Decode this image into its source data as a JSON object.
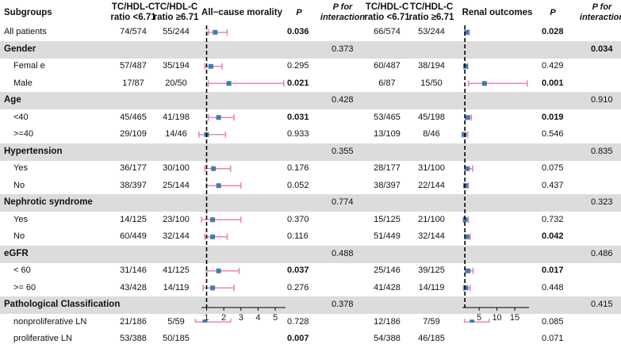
{
  "headers": {
    "subgroups": "Subgroups",
    "ratio_low_1": "TC/HDL-C",
    "ratio_low_2": "ratio <6.71",
    "ratio_high_1": "TC/HDL-C",
    "ratio_high_2": "ratio ≥6.71",
    "amr_title": "All−cause morality",
    "p": "P",
    "p_int_1": "P for",
    "p_int_2": "interaction",
    "renal_title": "Renal outcomes"
  },
  "rows": [
    {
      "label": "All patients",
      "type": "item",
      "indent": false,
      "amr_low": "74/574",
      "amr_high": "55/244",
      "amr_p": "0.036",
      "amr_p_bold": true,
      "ren_low": "66/574",
      "ren_high": "53/244",
      "ren_p": "0.028",
      "ren_p_bold": true
    },
    {
      "label": "Gender",
      "type": "group",
      "amr_pint": "0.373",
      "ren_pint": "0.034",
      "ren_pint_bold": true
    },
    {
      "label": "Femal e",
      "type": "item",
      "indent": true,
      "amr_low": "57/487",
      "amr_high": "35/194",
      "amr_p": "0.295",
      "amr_p_bold": false,
      "ren_low": "60/487",
      "ren_high": "38/194",
      "ren_p": "0.429",
      "ren_p_bold": false
    },
    {
      "label": "Male",
      "type": "item",
      "indent": true,
      "amr_low": "17/87",
      "amr_high": "20/50",
      "amr_p": "0.021",
      "amr_p_bold": true,
      "ren_low": "6/87",
      "ren_high": "15/50",
      "ren_p": "0.001",
      "ren_p_bold": true
    },
    {
      "label": "Age",
      "type": "group",
      "amr_pint": "0.428",
      "ren_pint": "0.910",
      "ren_pint_bold": false
    },
    {
      "label": "<40",
      "type": "item",
      "indent": true,
      "amr_low": "45/465",
      "amr_high": "41/198",
      "amr_p": "0.031",
      "amr_p_bold": true,
      "ren_low": "53/465",
      "ren_high": "45/198",
      "ren_p": "0.019",
      "ren_p_bold": true
    },
    {
      "label": ">=40",
      "type": "item",
      "indent": true,
      "amr_low": "29/109",
      "amr_high": "14/46",
      "amr_p": "0.933",
      "amr_p_bold": false,
      "ren_low": "13/109",
      "ren_high": "8/46",
      "ren_p": "0.546",
      "ren_p_bold": false
    },
    {
      "label": "Hypertension",
      "type": "group",
      "amr_pint": "0.355",
      "ren_pint": "0.835",
      "ren_pint_bold": false
    },
    {
      "label": "Yes",
      "type": "item",
      "indent": true,
      "amr_low": "36/177",
      "amr_high": "30/100",
      "amr_p": "0.176",
      "amr_p_bold": false,
      "ren_low": "28/177",
      "ren_high": "31/100",
      "ren_p": "0.075",
      "ren_p_bold": false
    },
    {
      "label": "No",
      "type": "item",
      "indent": true,
      "amr_low": "38/397",
      "amr_high": "25/144",
      "amr_p": "0.052",
      "amr_p_bold": false,
      "ren_low": "38/397",
      "ren_high": "22/144",
      "ren_p": "0.437",
      "ren_p_bold": false
    },
    {
      "label": "Nephrotic syndrome",
      "type": "group",
      "amr_pint": "0.774",
      "ren_pint": "0.323",
      "ren_pint_bold": false
    },
    {
      "label": "Yes",
      "type": "item",
      "indent": true,
      "amr_low": "14/125",
      "amr_high": "23/100",
      "amr_p": "0.370",
      "amr_p_bold": false,
      "ren_low": "15/125",
      "ren_high": "21/100",
      "ren_p": "0.732",
      "ren_p_bold": false
    },
    {
      "label": "No",
      "type": "item",
      "indent": true,
      "amr_low": "60/449",
      "amr_high": "32/144",
      "amr_p": "0.116",
      "amr_p_bold": false,
      "ren_low": "51/449",
      "ren_high": "32/144",
      "ren_p": "0.042",
      "ren_p_bold": true
    },
    {
      "label": "eGFR",
      "type": "group",
      "amr_pint": "0.488",
      "ren_pint": "0.486",
      "ren_pint_bold": false
    },
    {
      "label": "< 60",
      "type": "item",
      "indent": true,
      "amr_low": "31/146",
      "amr_high": "41/125",
      "amr_p": "0.037",
      "amr_p_bold": true,
      "ren_low": "25/146",
      "ren_high": "39/125",
      "ren_p": "0.017",
      "ren_p_bold": true
    },
    {
      "label": ">= 60",
      "type": "item",
      "indent": true,
      "amr_low": "43/428",
      "amr_high": "14/119",
      "amr_p": "0.276",
      "amr_p_bold": false,
      "ren_low": "41/428",
      "ren_high": "14/119",
      "ren_p": "0.448",
      "ren_p_bold": false
    },
    {
      "label": "Pathological Classification",
      "type": "group",
      "amr_pint": "0.378",
      "ren_pint": "0.415",
      "ren_pint_bold": false
    },
    {
      "label": "nonproliferative LN",
      "type": "item",
      "indent": true,
      "amr_low": "21/186",
      "amr_high": "5/59",
      "amr_p": "0.728",
      "amr_p_bold": false,
      "ren_low": "12/186",
      "ren_high": "7/59",
      "ren_p": "0.085",
      "ren_p_bold": false
    },
    {
      "label": "proliferative LN",
      "type": "item",
      "indent": true,
      "amr_low": "53/388",
      "amr_high": "50/185",
      "amr_p": "0.007",
      "amr_p_bold": true,
      "ren_low": "54/388",
      "ren_high": "46/185",
      "ren_p": "0.071",
      "ren_p_bold": false
    }
  ],
  "chart_data": [
    {
      "type": "forest",
      "title": "All−cause morality",
      "reference_line": 1,
      "xlim": [
        0.7,
        5.6
      ],
      "xticks": [
        1,
        2,
        3,
        4,
        5
      ],
      "tick_labels": [
        "1",
        "2",
        "3",
        "4",
        "5"
      ],
      "colors": {
        "ci": "#e887b3",
        "point": "#3a7fb0",
        "ref": "#000000"
      },
      "estimates": [
        {
          "row": "All patients",
          "hr": 1.5,
          "lo": 1.1,
          "hi": 2.2
        },
        {
          "row": "Femal e",
          "hr": 1.25,
          "lo": 0.9,
          "hi": 1.9
        },
        {
          "row": "Male",
          "hr": 2.3,
          "lo": 1.1,
          "hi": 5.5
        },
        {
          "row": "<40",
          "hr": 1.7,
          "lo": 1.1,
          "hi": 2.6
        },
        {
          "row": ">=40",
          "hr": 1.0,
          "lo": 0.55,
          "hi": 2.1
        },
        {
          "row": "Yes",
          "hr": 1.4,
          "lo": 0.9,
          "hi": 2.4
        },
        {
          "row": "No",
          "hr": 1.7,
          "lo": 1.0,
          "hi": 3.0
        },
        {
          "row": "Yes",
          "hr": 1.35,
          "lo": 0.7,
          "hi": 3.0
        },
        {
          "row": "No",
          "hr": 1.35,
          "lo": 0.9,
          "hi": 2.2
        },
        {
          "row": "< 60",
          "hr": 1.7,
          "lo": 1.0,
          "hi": 2.9
        },
        {
          "row": ">= 60",
          "hr": 1.35,
          "lo": 0.8,
          "hi": 2.6
        },
        {
          "row": "nonproliferative LN",
          "hr": 0.9,
          "lo": 0.35,
          "hi": 2.4
        },
        {
          "row": "proliferative LN",
          "hr": 1.8,
          "lo": 1.2,
          "hi": 2.8
        }
      ]
    },
    {
      "type": "forest",
      "title": "Renal outcomes",
      "reference_line": 1,
      "xlim": [
        0.3,
        19
      ],
      "xticks": [
        5,
        10,
        15
      ],
      "tick_labels": [
        "5",
        "10",
        "15"
      ],
      "colors": {
        "ci": "#e887b3",
        "point": "#3a7fb0",
        "ref": "#000000"
      },
      "estimates": [
        {
          "row": "All patients",
          "hr": 1.5,
          "lo": 1.0,
          "hi": 2.2
        },
        {
          "row": "Femal e",
          "hr": 1.2,
          "lo": 0.8,
          "hi": 1.8
        },
        {
          "row": "Male",
          "hr": 6.5,
          "lo": 2.0,
          "hi": 18.5
        },
        {
          "row": "<40",
          "hr": 1.8,
          "lo": 1.1,
          "hi": 2.8
        },
        {
          "row": ">=40",
          "hr": 0.8,
          "lo": 0.3,
          "hi": 1.8
        },
        {
          "row": "Yes",
          "hr": 1.7,
          "lo": 0.95,
          "hi": 3.2
        },
        {
          "row": "No",
          "hr": 1.2,
          "lo": 0.8,
          "hi": 2.0
        },
        {
          "row": "Yes",
          "hr": 1.1,
          "lo": 0.6,
          "hi": 2.0
        },
        {
          "row": "No",
          "hr": 1.6,
          "lo": 1.0,
          "hi": 2.5
        },
        {
          "row": "< 60",
          "hr": 1.9,
          "lo": 1.1,
          "hi": 3.3
        },
        {
          "row": ">= 60",
          "hr": 1.3,
          "lo": 0.65,
          "hi": 2.5
        },
        {
          "row": "nonproliferative LN",
          "hr": 3.0,
          "lo": 0.9,
          "hi": 7.8
        },
        {
          "row": "proliferative LN",
          "hr": 1.4,
          "lo": 0.9,
          "hi": 2.3
        }
      ]
    }
  ]
}
